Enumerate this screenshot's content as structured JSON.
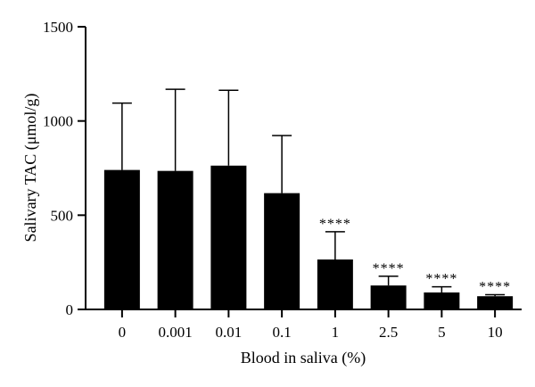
{
  "chart_data": {
    "type": "bar",
    "categories": [
      "0",
      "0.001",
      "0.01",
      "0.1",
      "1",
      "2.5",
      "5",
      "10"
    ],
    "values": [
      740,
      735,
      763,
      617,
      265,
      127,
      90,
      70
    ],
    "error_upper": [
      1095,
      1168,
      1163,
      923,
      412,
      176,
      120,
      78
    ],
    "significance": [
      "",
      "",
      "",
      "",
      "****",
      "****",
      "****",
      "****"
    ],
    "xlabel": "Blood in saliva (%)",
    "ylabel": "Salivary TAC (μmol/g)",
    "ylim": [
      0,
      1500
    ],
    "yticks": [
      0,
      500,
      1000,
      1500
    ],
    "ytick_labels": [
      "0",
      "500",
      "1000",
      "1500"
    ],
    "bar_color": "#000000",
    "grid": false,
    "legend": "none"
  }
}
